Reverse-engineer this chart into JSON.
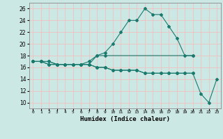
{
  "xlabel": "Humidex (Indice chaleur)",
  "background_color": "#cce8e4",
  "grid_color": "#f0c0c0",
  "line_color": "#1a7a6e",
  "xlim": [
    -0.5,
    23.5
  ],
  "ylim": [
    9,
    27
  ],
  "yticks": [
    10,
    12,
    14,
    16,
    18,
    20,
    22,
    24,
    26
  ],
  "xtick_labels": [
    "0",
    "1",
    "2",
    "3",
    "4",
    "5",
    "6",
    "7",
    "8",
    "9",
    "10",
    "11",
    "12",
    "13",
    "14",
    "15",
    "16",
    "17",
    "18",
    "19",
    "20",
    "21",
    "22",
    "23"
  ],
  "curve1": [
    17,
    17,
    17,
    16.5,
    16.5,
    16.5,
    16.5,
    16.5,
    18,
    18.5,
    20,
    22,
    24,
    24,
    26,
    25,
    25,
    23,
    21,
    18,
    18,
    null,
    null,
    null
  ],
  "curve2": [
    17,
    17,
    17,
    16.5,
    16.5,
    16.5,
    16.5,
    17,
    18,
    18,
    null,
    null,
    null,
    null,
    null,
    null,
    null,
    null,
    null,
    null,
    18,
    null,
    null,
    null
  ],
  "curve3": [
    17,
    17,
    16.5,
    16.5,
    16.5,
    16.5,
    16.5,
    16.5,
    16,
    16,
    15.5,
    15.5,
    15.5,
    15.5,
    15,
    15,
    15,
    15,
    15,
    15,
    15,
    11.5,
    10,
    14
  ],
  "curve4": [
    17,
    17,
    16.5,
    16.5,
    16.5,
    16.5,
    16.5,
    16.5,
    16,
    16,
    15.5,
    15.5,
    15.5,
    15.5,
    15,
    15,
    15,
    15,
    15,
    15,
    15,
    null,
    null,
    null
  ]
}
